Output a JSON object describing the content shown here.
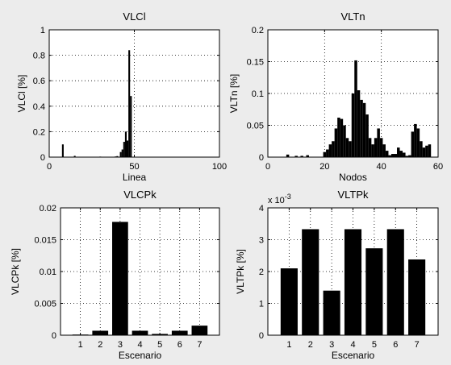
{
  "chart_data": [
    {
      "id": "vlcl",
      "type": "bar",
      "title": "VLCl",
      "xlabel": "Linea",
      "ylabel": "VLCl [%]",
      "xlim": [
        0,
        100
      ],
      "ylim": [
        0,
        1
      ],
      "xticks": [
        0,
        50,
        100
      ],
      "xtick_labels": [
        "0",
        "50",
        "100"
      ],
      "yticks": [
        0,
        0.2,
        0.4,
        0.6,
        0.8,
        1
      ],
      "ytick_labels": [
        "0",
        "0.2",
        "0.4",
        "0.6",
        "0.8",
        "1"
      ],
      "exponent_label": "",
      "grid": true,
      "bar_width": 1,
      "x": [
        8,
        15,
        24,
        30,
        38,
        39,
        40,
        41,
        42,
        43,
        44,
        45,
        46,
        47,
        48
      ],
      "values": [
        0.1,
        0.01,
        0.003,
        0.004,
        0.003,
        0.005,
        0.008,
        0.003,
        0.04,
        0.06,
        0.12,
        0.2,
        0.13,
        0.84,
        0.48
      ]
    },
    {
      "id": "vltn",
      "type": "bar",
      "title": "VLTn",
      "xlabel": "Nodos",
      "ylabel": "VLTn [%]",
      "xlim": [
        0,
        60
      ],
      "ylim": [
        0,
        0.2
      ],
      "xticks": [
        0,
        20,
        40,
        60
      ],
      "xtick_labels": [
        "0",
        "20",
        "40",
        "60"
      ],
      "yticks": [
        0,
        0.05,
        0.1,
        0.15,
        0.2
      ],
      "ytick_labels": [
        "0",
        "0.05",
        "0.1",
        "0.15",
        "0.2"
      ],
      "exponent_label": "",
      "grid": true,
      "bar_width": 1,
      "x": [
        7,
        10,
        12,
        14,
        20,
        21,
        22,
        23,
        24,
        25,
        26,
        27,
        28,
        29,
        30,
        31,
        32,
        33,
        34,
        35,
        36,
        37,
        38,
        39,
        40,
        41,
        42,
        43,
        44,
        45,
        46,
        47,
        48,
        49,
        50,
        51,
        52,
        53,
        54,
        55,
        56,
        57
      ],
      "values": [
        0.004,
        0.002,
        0.002,
        0.003,
        0.008,
        0.012,
        0.02,
        0.025,
        0.045,
        0.062,
        0.06,
        0.05,
        0.03,
        0.025,
        0.1,
        0.152,
        0.105,
        0.09,
        0.085,
        0.067,
        0.03,
        0.02,
        0.03,
        0.045,
        0.03,
        0.02,
        0.01,
        0.003,
        0.005,
        0.005,
        0.015,
        0.01,
        0.007,
        0.002,
        0.003,
        0.04,
        0.052,
        0.045,
        0.025,
        0.015,
        0.018,
        0.02
      ]
    },
    {
      "id": "vlcpk",
      "type": "bar",
      "title": "VLCPk",
      "xlabel": "Escenario",
      "ylabel": "VLCPk [%]",
      "xlim": [
        0,
        8
      ],
      "ylim": [
        0,
        0.02
      ],
      "xticks": [
        1,
        2,
        3,
        4,
        5,
        6,
        7
      ],
      "xtick_labels": [
        "1",
        "2",
        "3",
        "4",
        "5",
        "6",
        "7"
      ],
      "yticks": [
        0,
        0.005,
        0.01,
        0.015,
        0.02
      ],
      "ytick_labels": [
        "0",
        "0.005",
        "0.01",
        "0.015",
        "0.02"
      ],
      "exponent_label": "",
      "grid": true,
      "bar_width": 0.8,
      "x": [
        1,
        2,
        3,
        4,
        5,
        6,
        7
      ],
      "values": [
        0.0001,
        0.0007,
        0.0178,
        0.0007,
        0.0002,
        0.0007,
        0.0015
      ]
    },
    {
      "id": "vltpk",
      "type": "bar",
      "title": "VLTPk",
      "xlabel": "Escenario",
      "ylabel": "VLTPk [%]",
      "xlim": [
        0,
        8
      ],
      "ylim": [
        0,
        0.004
      ],
      "xticks": [
        1,
        2,
        3,
        4,
        5,
        6,
        7
      ],
      "xtick_labels": [
        "1",
        "2",
        "3",
        "4",
        "5",
        "6",
        "7"
      ],
      "yticks": [
        0,
        0.001,
        0.002,
        0.003,
        0.004
      ],
      "ytick_labels": [
        "0",
        "1",
        "2",
        "3",
        "4"
      ],
      "exponent_label": "x 10",
      "exponent_power": "-3",
      "grid": true,
      "bar_width": 0.8,
      "x": [
        1,
        2,
        3,
        4,
        5,
        6,
        7
      ],
      "values": [
        0.0021,
        0.00333,
        0.0014,
        0.00333,
        0.00273,
        0.00333,
        0.00238
      ]
    }
  ]
}
